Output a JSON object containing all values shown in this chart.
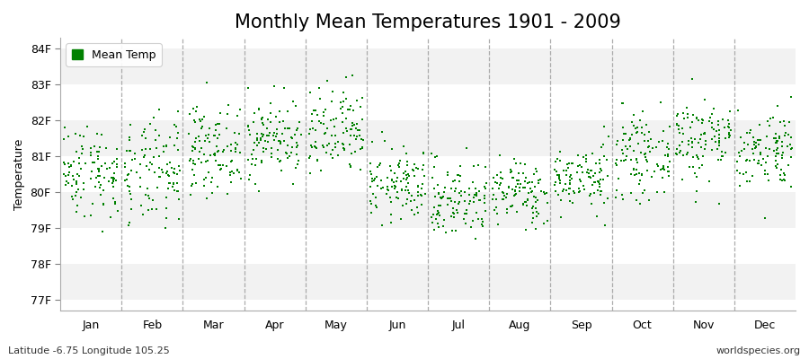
{
  "title": "Monthly Mean Temperatures 1901 - 2009",
  "ylabel": "Temperature",
  "xlabel_months": [
    "Jan",
    "Feb",
    "Mar",
    "Apr",
    "May",
    "Jun",
    "Jul",
    "Aug",
    "Sep",
    "Oct",
    "Nov",
    "Dec"
  ],
  "ytick_labels": [
    "77F",
    "78F",
    "79F",
    "80F",
    "81F",
    "82F",
    "83F",
    "84F"
  ],
  "ytick_values": [
    77,
    78,
    79,
    80,
    81,
    82,
    83,
    84
  ],
  "ylim": [
    76.7,
    84.3
  ],
  "dot_color": "#008000",
  "band_colors": [
    "#f2f2f2",
    "#ffffff"
  ],
  "legend_label": "Mean Temp",
  "bottom_left": "Latitude -6.75 Longitude 105.25",
  "bottom_right": "worldspecies.org",
  "title_fontsize": 15,
  "axis_fontsize": 9,
  "tick_fontsize": 9,
  "dpi": 100,
  "figsize": [
    9.0,
    4.0
  ],
  "monthly_means": [
    80.6,
    80.5,
    81.2,
    81.5,
    81.6,
    80.2,
    79.8,
    80.0,
    80.4,
    81.0,
    81.5,
    81.2
  ],
  "monthly_stds": [
    0.65,
    0.75,
    0.6,
    0.55,
    0.65,
    0.5,
    0.55,
    0.45,
    0.45,
    0.55,
    0.6,
    0.55
  ],
  "n_years": 109,
  "random_seed": 42
}
